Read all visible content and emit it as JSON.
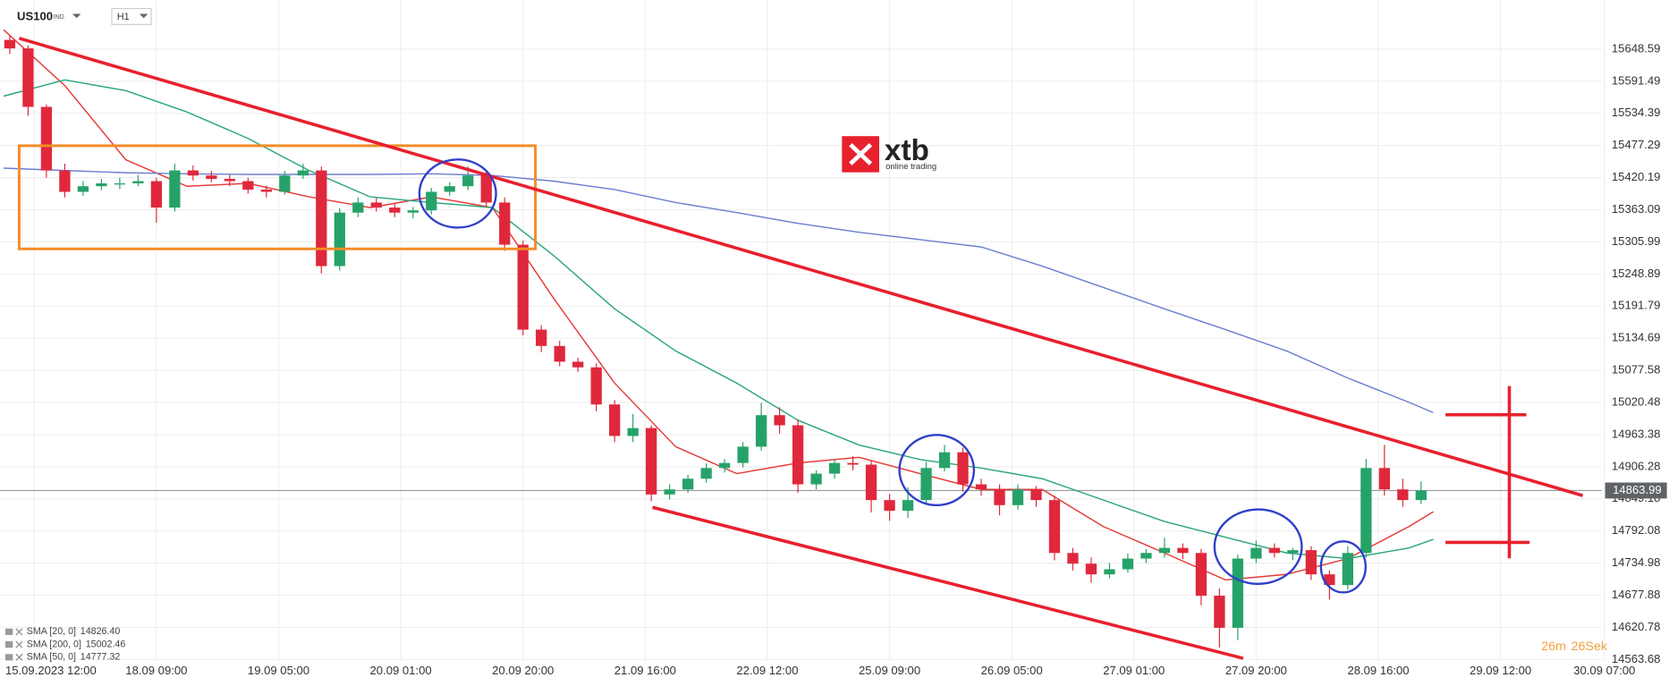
{
  "header": {
    "symbol": "US100",
    "market": "IND",
    "timeframe": "H1"
  },
  "logo": {
    "brand": "xtb",
    "tagline": "online trading"
  },
  "countdown": {
    "minutes": "26m",
    "seconds": "26Sek"
  },
  "chart_data": {
    "type": "candlestick",
    "x": [
      -4,
      -1,
      2,
      5,
      8,
      11,
      14,
      17,
      20,
      23,
      26,
      29,
      32,
      35,
      38,
      41,
      44,
      47,
      50,
      53,
      56,
      59,
      62,
      65,
      68,
      71,
      74,
      77,
      80,
      83,
      86,
      89,
      92,
      95,
      98,
      101,
      104,
      107,
      110,
      113,
      116,
      119,
      122,
      125,
      128,
      131,
      134,
      137,
      140,
      143,
      146,
      149,
      152,
      155,
      158,
      161,
      164,
      167,
      170,
      173,
      176,
      179,
      182,
      185,
      188,
      191,
      194,
      197,
      200,
      203,
      206,
      209,
      212,
      215,
      218,
      221,
      224,
      227
    ],
    "ohlc": [
      [
        15665,
        15672,
        15640,
        15650
      ],
      [
        15650,
        15655,
        15530,
        15546
      ],
      [
        15546,
        15550,
        15420,
        15433
      ],
      [
        15433,
        15445,
        15385,
        15395
      ],
      [
        15395,
        15414,
        15388,
        15405
      ],
      [
        15405,
        15418,
        15398,
        15410
      ],
      [
        15408,
        15420,
        15400,
        15410
      ],
      [
        15410,
        15425,
        15405,
        15414
      ],
      [
        15414,
        15420,
        15340,
        15367
      ],
      [
        15367,
        15445,
        15360,
        15433
      ],
      [
        15433,
        15442,
        15415,
        15424
      ],
      [
        15424,
        15432,
        15412,
        15418
      ],
      [
        15418,
        15425,
        15405,
        15414
      ],
      [
        15414,
        15420,
        15392,
        15399
      ],
      [
        15399,
        15406,
        15385,
        15395
      ],
      [
        15395,
        15432,
        15390,
        15424
      ],
      [
        15424,
        15445,
        15418,
        15433
      ],
      [
        15433,
        15440,
        15250,
        15263
      ],
      [
        15263,
        15366,
        15255,
        15358
      ],
      [
        15358,
        15385,
        15350,
        15376
      ],
      [
        15376,
        15384,
        15360,
        15367
      ],
      [
        15367,
        15375,
        15350,
        15358
      ],
      [
        15358,
        15368,
        15348,
        15362
      ],
      [
        15362,
        15402,
        15355,
        15395
      ],
      [
        15395,
        15412,
        15388,
        15405
      ],
      [
        15405,
        15440,
        15398,
        15424
      ],
      [
        15424,
        15432,
        15368,
        15376
      ],
      [
        15376,
        15385,
        15290,
        15301
      ],
      [
        15301,
        15308,
        15140,
        15150
      ],
      [
        15150,
        15158,
        15110,
        15121
      ],
      [
        15121,
        15130,
        15085,
        15093
      ],
      [
        15093,
        15100,
        15075,
        15083
      ],
      [
        15083,
        15090,
        15005,
        15017
      ],
      [
        15017,
        15025,
        14950,
        14961
      ],
      [
        14961,
        15000,
        14950,
        14975
      ],
      [
        14975,
        14980,
        14845,
        14857
      ],
      [
        14857,
        14875,
        14848,
        14866
      ],
      [
        14866,
        14892,
        14860,
        14885
      ],
      [
        14885,
        14912,
        14878,
        14904
      ],
      [
        14904,
        14920,
        14896,
        14913
      ],
      [
        14913,
        14950,
        14905,
        14942
      ],
      [
        14942,
        15020,
        14935,
        14998
      ],
      [
        14998,
        15012,
        14965,
        14980
      ],
      [
        14980,
        14990,
        14860,
        14875
      ],
      [
        14875,
        14900,
        14866,
        14894
      ],
      [
        14894,
        14920,
        14885,
        14913
      ],
      [
        14913,
        14925,
        14900,
        14910
      ],
      [
        14910,
        14918,
        14825,
        14847
      ],
      [
        14847,
        14858,
        14810,
        14828
      ],
      [
        14828,
        14870,
        14815,
        14847
      ],
      [
        14847,
        14915,
        14840,
        14904
      ],
      [
        14904,
        14945,
        14898,
        14932
      ],
      [
        14932,
        14940,
        14862,
        14875
      ],
      [
        14875,
        14885,
        14855,
        14866
      ],
      [
        14866,
        14875,
        14820,
        14838
      ],
      [
        14838,
        14875,
        14830,
        14866
      ],
      [
        14866,
        14872,
        14835,
        14847
      ],
      [
        14847,
        14855,
        14740,
        14753
      ],
      [
        14753,
        14762,
        14722,
        14734
      ],
      [
        14734,
        14745,
        14700,
        14715
      ],
      [
        14715,
        14735,
        14708,
        14724
      ],
      [
        14724,
        14752,
        14718,
        14743
      ],
      [
        14743,
        14760,
        14735,
        14753
      ],
      [
        14753,
        14780,
        14745,
        14762
      ],
      [
        14762,
        14770,
        14742,
        14753
      ],
      [
        14753,
        14760,
        14660,
        14677
      ],
      [
        14677,
        14690,
        14585,
        14620
      ],
      [
        14620,
        14750,
        14598,
        14743
      ],
      [
        14743,
        14775,
        14735,
        14762
      ],
      [
        14762,
        14770,
        14745,
        14753
      ],
      [
        14753,
        14762,
        14740,
        14758
      ],
      [
        14758,
        14765,
        14705,
        14715
      ],
      [
        14715,
        14722,
        14670,
        14696
      ],
      [
        14696,
        14765,
        14688,
        14753
      ],
      [
        14753,
        14920,
        14745,
        14904
      ],
      [
        14904,
        14945,
        14855,
        14866
      ],
      [
        14866,
        14885,
        14835,
        14847
      ],
      [
        14847,
        14880,
        14840,
        14864
      ]
    ],
    "up_color": "#26a269",
    "down_color": "#e0283c",
    "xlim": [
      -5.6,
      256.6
    ],
    "xticks": [
      {
        "value": 0,
        "label": "15.09.2023 12:00"
      },
      {
        "value": 20,
        "label": "18.09 09:00"
      },
      {
        "value": 40,
        "label": "19.09 05:00"
      },
      {
        "value": 60,
        "label": "20.09 01:00"
      },
      {
        "value": 80,
        "label": "20.09 20:00"
      },
      {
        "value": 100,
        "label": "21.09 16:00"
      },
      {
        "value": 120,
        "label": "22.09 12:00"
      },
      {
        "value": 140,
        "label": "25.09 09:00"
      },
      {
        "value": 160,
        "label": "26.09 05:00"
      },
      {
        "value": 180,
        "label": "27.09 01:00"
      },
      {
        "value": 200,
        "label": "27.09 20:00"
      },
      {
        "value": 220,
        "label": "28.09 16:00"
      },
      {
        "value": 240,
        "label": "29.09 12:00"
      },
      {
        "value": 257,
        "label": "30.09 07:00"
      }
    ],
    "ylim": [
      14560,
      15736
    ],
    "yticks": [
      15648.59,
      15591.49,
      15534.39,
      15477.29,
      15420.19,
      15363.09,
      15305.99,
      15248.89,
      15191.79,
      15134.69,
      15077.58,
      15020.48,
      14963.38,
      14906.28,
      14849.18,
      14792.08,
      14734.98,
      14677.88,
      14620.78,
      14563.68
    ],
    "grid": true,
    "last_price": 14863.99,
    "indicator_x": [
      -5,
      5,
      15,
      25,
      35,
      45,
      55,
      65,
      75,
      85,
      95,
      105,
      115,
      125,
      135,
      145,
      155,
      165,
      175,
      185,
      195,
      205,
      215,
      225,
      229
    ],
    "indicators": [
      {
        "name": "SMA [20, 0]",
        "value_label": "14826.40",
        "color": "#e53935",
        "values": [
          15683,
          15584,
          15452,
          15405,
          15410,
          15386,
          15367,
          15386,
          15367,
          15206,
          15055,
          14942,
          14894,
          14913,
          14923,
          14894,
          14866,
          14866,
          14800,
          14753,
          14705,
          14715,
          14743,
          14800,
          14826.4
        ]
      },
      {
        "name": "SMA [200, 0]",
        "value_label": "15002.46",
        "color": "#6b7fd1",
        "values": [
          15437,
          15433,
          15429,
          15427,
          15426,
          15426,
          15426,
          15427,
          15424,
          15414,
          15399,
          15376,
          15358,
          15339,
          15323,
          15310,
          15297,
          15263,
          15225,
          15187,
          15150,
          15112,
          15064,
          15021,
          15002.46
        ]
      },
      {
        "name": "SMA [50, 0]",
        "value_label": "14777.32",
        "color": "#2aa57a",
        "values": [
          15565,
          15594,
          15575,
          15537,
          15490,
          15433,
          15386,
          15376,
          15367,
          15282,
          15187,
          15112,
          15055,
          14989,
          14945,
          14919,
          14904,
          14885,
          14847,
          14809,
          14781,
          14753,
          14743,
          14762,
          14777.32
        ]
      }
    ]
  }
}
